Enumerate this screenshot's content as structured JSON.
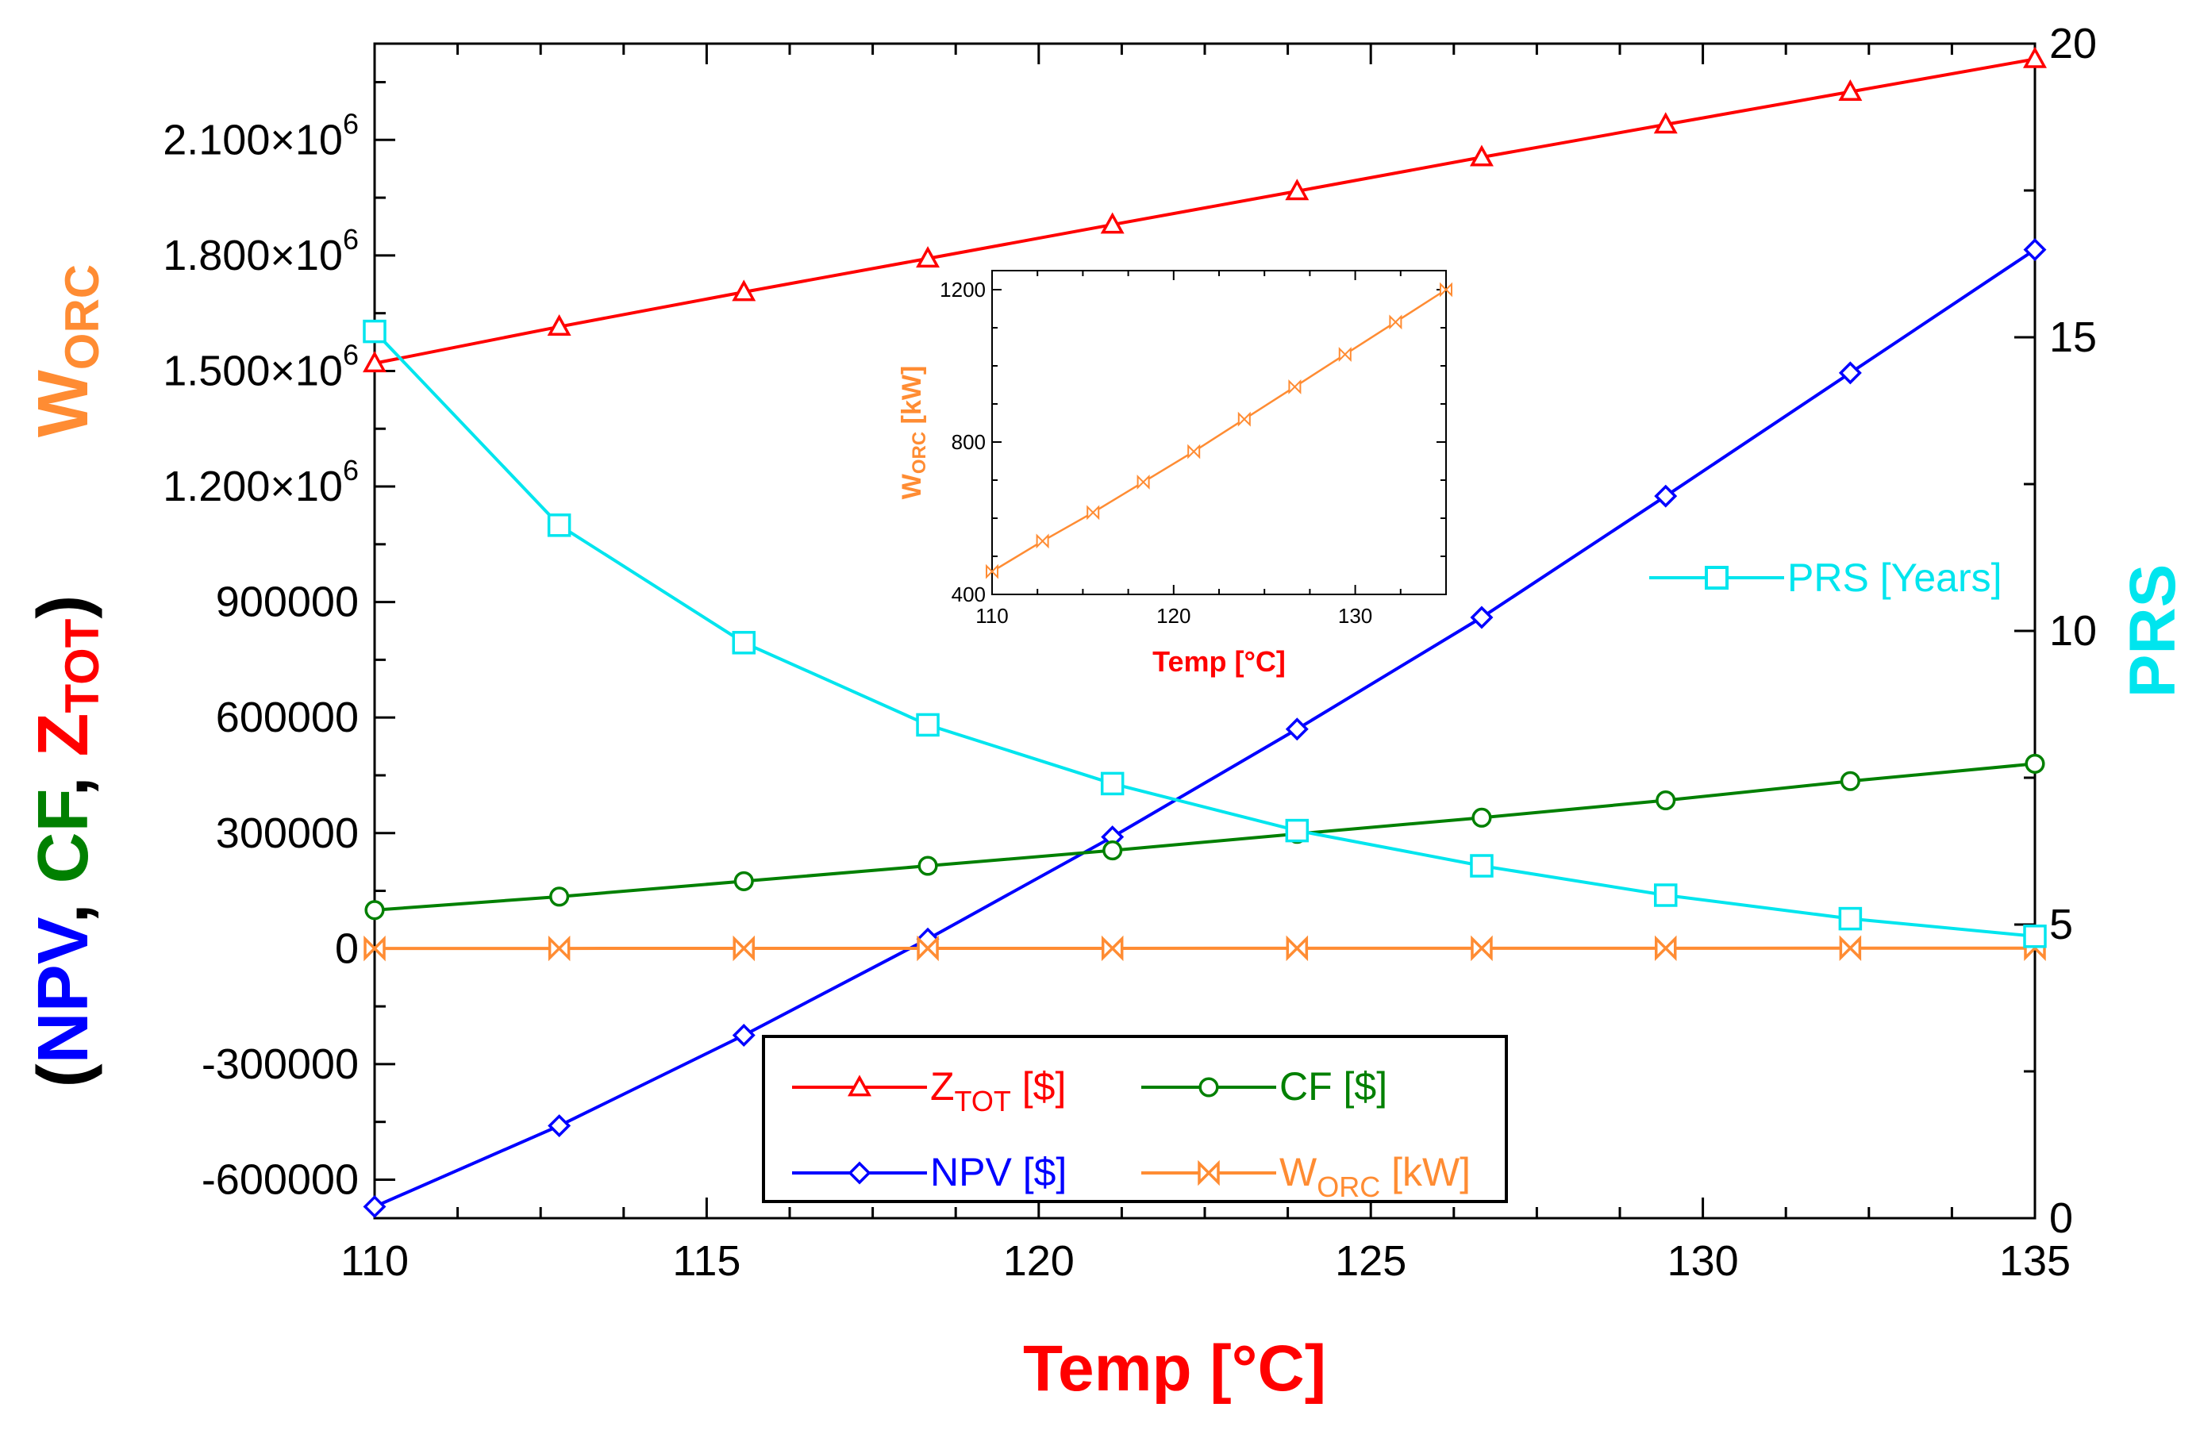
{
  "chart_data": {
    "type": "line",
    "x_label": "Temp [°C]",
    "left_axis_label": {
      "prefix": "(",
      "npv": "NPV",
      "comma1": ", ",
      "cf": "CF",
      "comma2": ", ",
      "z_main": "Z",
      "z_sub": "TOT",
      "suffix": ")"
    },
    "left_axis_label_top": {
      "main": "W",
      "sub": "ORC"
    },
    "right_axis_label": "PRS",
    "x_range": [
      110,
      135
    ],
    "x_ticks": [
      110,
      115,
      120,
      125,
      130,
      135
    ],
    "y_left_range": [
      -700000,
      2350000
    ],
    "y_left_ticks": [
      {
        "value": -600000,
        "label": "-600000"
      },
      {
        "value": -300000,
        "label": "-300000"
      },
      {
        "value": 0,
        "label": "0"
      },
      {
        "value": 300000,
        "label": "300000"
      },
      {
        "value": 600000,
        "label": "600000"
      },
      {
        "value": 900000,
        "label": "900000"
      },
      {
        "value": 1200000,
        "label": "1.200×10",
        "exp": "6"
      },
      {
        "value": 1500000,
        "label": "1.500×10",
        "exp": "6"
      },
      {
        "value": 1800000,
        "label": "1.800×10",
        "exp": "6"
      },
      {
        "value": 2100000,
        "label": "2.100×10",
        "exp": "6"
      }
    ],
    "y_right_range": [
      0,
      20
    ],
    "y_right_ticks": [
      0,
      5,
      10,
      15,
      20
    ],
    "x": [
      110,
      112.78,
      115.56,
      118.33,
      121.11,
      123.89,
      126.67,
      129.44,
      132.22,
      135
    ],
    "series": [
      {
        "name": "Z_TOT [$]",
        "legend_main": "Z",
        "legend_sub": "TOT",
        "legend_tail": " [$]",
        "axis": "left",
        "color": "#ff0000",
        "marker": "triangle",
        "values": [
          1520000,
          1615000,
          1705000,
          1792000,
          1880000,
          1967000,
          2055000,
          2140000,
          2225000,
          2310000
        ]
      },
      {
        "name": "NPV [$]",
        "legend_main": "NPV [$]",
        "legend_sub": "",
        "legend_tail": "",
        "axis": "left",
        "color": "#0000ff",
        "marker": "diamond",
        "values": [
          -670000,
          -460000,
          -225000,
          25000,
          290000,
          570000,
          860000,
          1175000,
          1495000,
          1815000
        ]
      },
      {
        "name": "CF [$]",
        "legend_main": "CF [$]",
        "legend_sub": "",
        "legend_tail": "",
        "axis": "left",
        "color": "#008000",
        "marker": "circle",
        "values": [
          100000,
          135000,
          175000,
          215000,
          255000,
          298000,
          340000,
          385000,
          435000,
          480000
        ]
      },
      {
        "name": "W_ORC [kW]",
        "legend_main": "W",
        "legend_sub": "ORC",
        "legend_tail": " [kW]",
        "axis": "left",
        "color": "#ff8c33",
        "marker": "bowtie",
        "values": [
          460,
          540,
          615,
          695,
          775,
          860,
          945,
          1030,
          1115,
          1200
        ]
      },
      {
        "name": "PRS [Years]",
        "axis": "right",
        "color": "#00e5ee",
        "marker": "square",
        "values": [
          15.1,
          11.8,
          9.8,
          8.4,
          7.4,
          6.6,
          6.0,
          5.5,
          5.1,
          4.8
        ]
      }
    ],
    "prs_legend": "PRS [Years]",
    "inset": {
      "x_label": "Temp [°C]",
      "y_label_main": "W",
      "y_label_sub": "ORC",
      "y_label_tail": " [kW]",
      "x_range": [
        110,
        135
      ],
      "y_range": [
        400,
        1250
      ],
      "x_ticks": [
        110,
        120,
        130
      ],
      "y_ticks": [
        400,
        800,
        1200
      ],
      "color": "#ff8c33"
    }
  }
}
